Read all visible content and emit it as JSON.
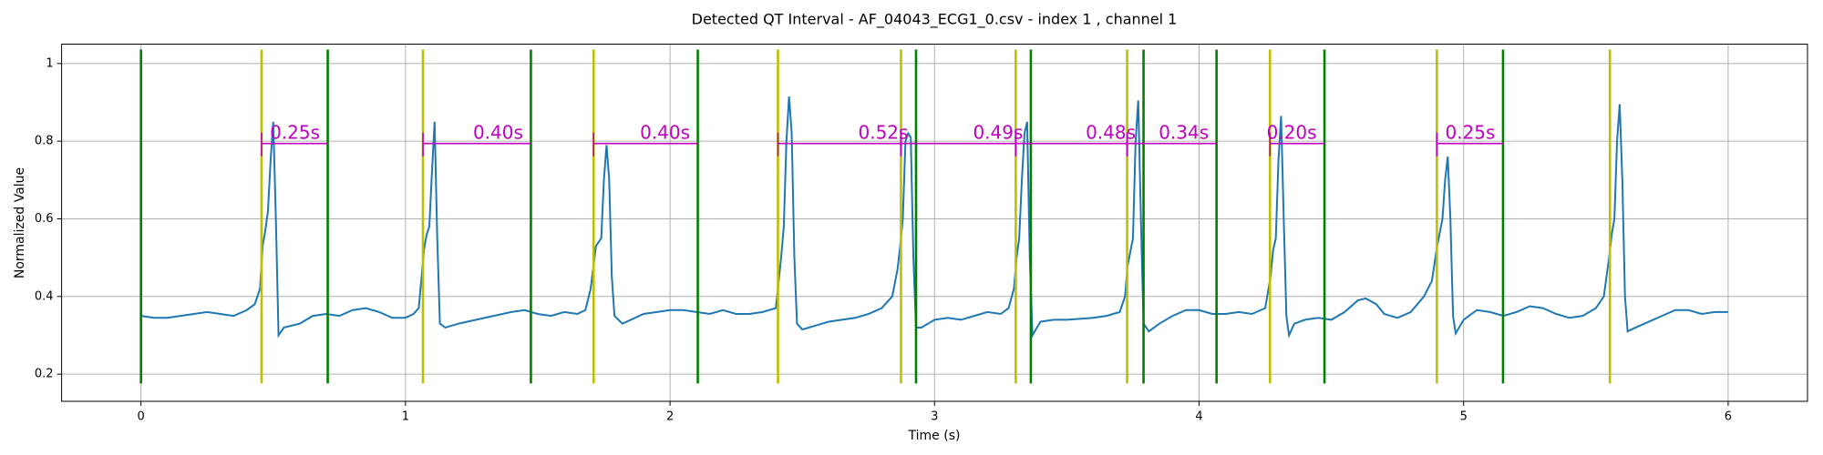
{
  "chart_data": {
    "type": "line",
    "title": "Detected QT Interval - AF_04043_ECG1_0.csv - index 1 , channel 1",
    "x_label": "Time (s)",
    "y_label": "Normalized Value",
    "xlim": [
      -0.3,
      6.3
    ],
    "ylim": [
      0.13,
      1.05
    ],
    "xticks": [
      0,
      1,
      2,
      3,
      4,
      5,
      6
    ],
    "yticks": [
      0.2,
      0.4,
      0.6,
      0.8,
      1.0
    ],
    "grid": true,
    "series": [
      {
        "color": "#1f77b4",
        "x": [
          0,
          0.05,
          0.1,
          0.2,
          0.25,
          0.3,
          0.35,
          0.4,
          0.43,
          0.45,
          0.46,
          0.47,
          0.48,
          0.49,
          0.5,
          0.51,
          0.52,
          0.54,
          0.6,
          0.65,
          0.7,
          0.75,
          0.8,
          0.85,
          0.9,
          0.95,
          1.0,
          1.03,
          1.05,
          1.07,
          1.08,
          1.09,
          1.1,
          1.11,
          1.12,
          1.13,
          1.15,
          1.2,
          1.3,
          1.4,
          1.45,
          1.5,
          1.55,
          1.6,
          1.65,
          1.68,
          1.7,
          1.72,
          1.74,
          1.75,
          1.76,
          1.77,
          1.78,
          1.79,
          1.82,
          1.9,
          2.0,
          2.05,
          2.1,
          2.15,
          2.2,
          2.25,
          2.3,
          2.35,
          2.4,
          2.42,
          2.43,
          2.44,
          2.45,
          2.46,
          2.47,
          2.48,
          2.5,
          2.55,
          2.6,
          2.65,
          2.7,
          2.75,
          2.8,
          2.84,
          2.86,
          2.87,
          2.88,
          2.89,
          2.9,
          2.91,
          2.92,
          2.93,
          2.95,
          3.0,
          3.05,
          3.1,
          3.15,
          3.2,
          3.25,
          3.28,
          3.3,
          3.31,
          3.32,
          3.33,
          3.34,
          3.35,
          3.36,
          3.37,
          3.4,
          3.45,
          3.5,
          3.6,
          3.65,
          3.7,
          3.72,
          3.73,
          3.75,
          3.76,
          3.77,
          3.78,
          3.79,
          3.81,
          3.85,
          3.9,
          3.95,
          4.0,
          4.05,
          4.1,
          4.15,
          4.2,
          4.25,
          4.27,
          4.28,
          4.29,
          4.3,
          4.31,
          4.32,
          4.33,
          4.34,
          4.36,
          4.4,
          4.45,
          4.5,
          4.55,
          4.6,
          4.63,
          4.67,
          4.7,
          4.75,
          4.8,
          4.85,
          4.88,
          4.9,
          4.92,
          4.93,
          4.94,
          4.95,
          4.96,
          4.97,
          5.0,
          5.05,
          5.1,
          5.15,
          5.2,
          5.25,
          5.3,
          5.35,
          5.4,
          5.45,
          5.5,
          5.53,
          5.55,
          5.56,
          5.57,
          5.58,
          5.59,
          5.6,
          5.61,
          5.62,
          5.65,
          5.7,
          5.75,
          5.8,
          5.85,
          5.9,
          5.95,
          6.0
        ],
        "values": [
          0.35,
          0.345,
          0.345,
          0.355,
          0.36,
          0.355,
          0.35,
          0.365,
          0.38,
          0.42,
          0.53,
          0.57,
          0.62,
          0.75,
          0.85,
          0.6,
          0.3,
          0.32,
          0.33,
          0.35,
          0.355,
          0.35,
          0.365,
          0.37,
          0.36,
          0.345,
          0.345,
          0.355,
          0.37,
          0.52,
          0.56,
          0.58,
          0.72,
          0.85,
          0.55,
          0.33,
          0.32,
          0.33,
          0.345,
          0.36,
          0.365,
          0.355,
          0.35,
          0.36,
          0.355,
          0.365,
          0.42,
          0.53,
          0.55,
          0.7,
          0.79,
          0.7,
          0.45,
          0.35,
          0.33,
          0.355,
          0.365,
          0.365,
          0.36,
          0.355,
          0.365,
          0.355,
          0.355,
          0.36,
          0.37,
          0.5,
          0.58,
          0.8,
          0.915,
          0.82,
          0.5,
          0.33,
          0.315,
          0.325,
          0.335,
          0.34,
          0.345,
          0.355,
          0.37,
          0.4,
          0.47,
          0.53,
          0.6,
          0.8,
          0.82,
          0.81,
          0.5,
          0.32,
          0.32,
          0.34,
          0.345,
          0.34,
          0.35,
          0.36,
          0.355,
          0.37,
          0.42,
          0.5,
          0.55,
          0.7,
          0.82,
          0.85,
          0.5,
          0.3,
          0.335,
          0.34,
          0.34,
          0.345,
          0.35,
          0.36,
          0.4,
          0.48,
          0.55,
          0.8,
          0.905,
          0.6,
          0.33,
          0.31,
          0.33,
          0.35,
          0.365,
          0.365,
          0.355,
          0.355,
          0.36,
          0.355,
          0.37,
          0.45,
          0.52,
          0.55,
          0.75,
          0.865,
          0.6,
          0.35,
          0.3,
          0.33,
          0.34,
          0.345,
          0.34,
          0.36,
          0.39,
          0.395,
          0.38,
          0.355,
          0.345,
          0.36,
          0.4,
          0.44,
          0.53,
          0.6,
          0.7,
          0.76,
          0.6,
          0.35,
          0.305,
          0.34,
          0.365,
          0.36,
          0.35,
          0.36,
          0.375,
          0.37,
          0.355,
          0.345,
          0.35,
          0.37,
          0.4,
          0.5,
          0.56,
          0.6,
          0.8,
          0.895,
          0.7,
          0.4,
          0.31,
          0.32,
          0.335,
          0.35,
          0.365,
          0.365,
          0.355,
          0.36,
          0.36
        ]
      }
    ],
    "vline_range": [
      0.176,
      1.036
    ],
    "q_onsets": {
      "color": "#bfbf00",
      "x": [
        0.456,
        1.066,
        1.711,
        2.408,
        2.873,
        3.307,
        3.728,
        4.268,
        4.899,
        5.553
      ]
    },
    "t_ends": {
      "color": "#008000",
      "x": [
        0.0,
        0.706,
        1.474,
        2.105,
        2.93,
        3.364,
        3.79,
        4.066,
        4.474,
        5.149
      ]
    },
    "interval_color": "#bf00bf",
    "interval_y": 0.794,
    "intervals": [
      {
        "start": 0.456,
        "end": 0.706,
        "label": "0.25s"
      },
      {
        "start": 1.066,
        "end": 1.474,
        "label": "0.40s"
      },
      {
        "start": 1.711,
        "end": 2.105,
        "label": "0.40s"
      },
      {
        "start": 2.408,
        "end": 2.93,
        "label": "0.52s"
      },
      {
        "start": 2.873,
        "end": 3.364,
        "label": "0.49s"
      },
      {
        "start": 3.307,
        "end": 3.79,
        "label": "0.48s"
      },
      {
        "start": 3.728,
        "end": 4.066,
        "label": "0.34s"
      },
      {
        "start": 4.268,
        "end": 4.474,
        "label": "0.20s"
      },
      {
        "start": 4.899,
        "end": 5.149,
        "label": "0.25s"
      }
    ]
  }
}
